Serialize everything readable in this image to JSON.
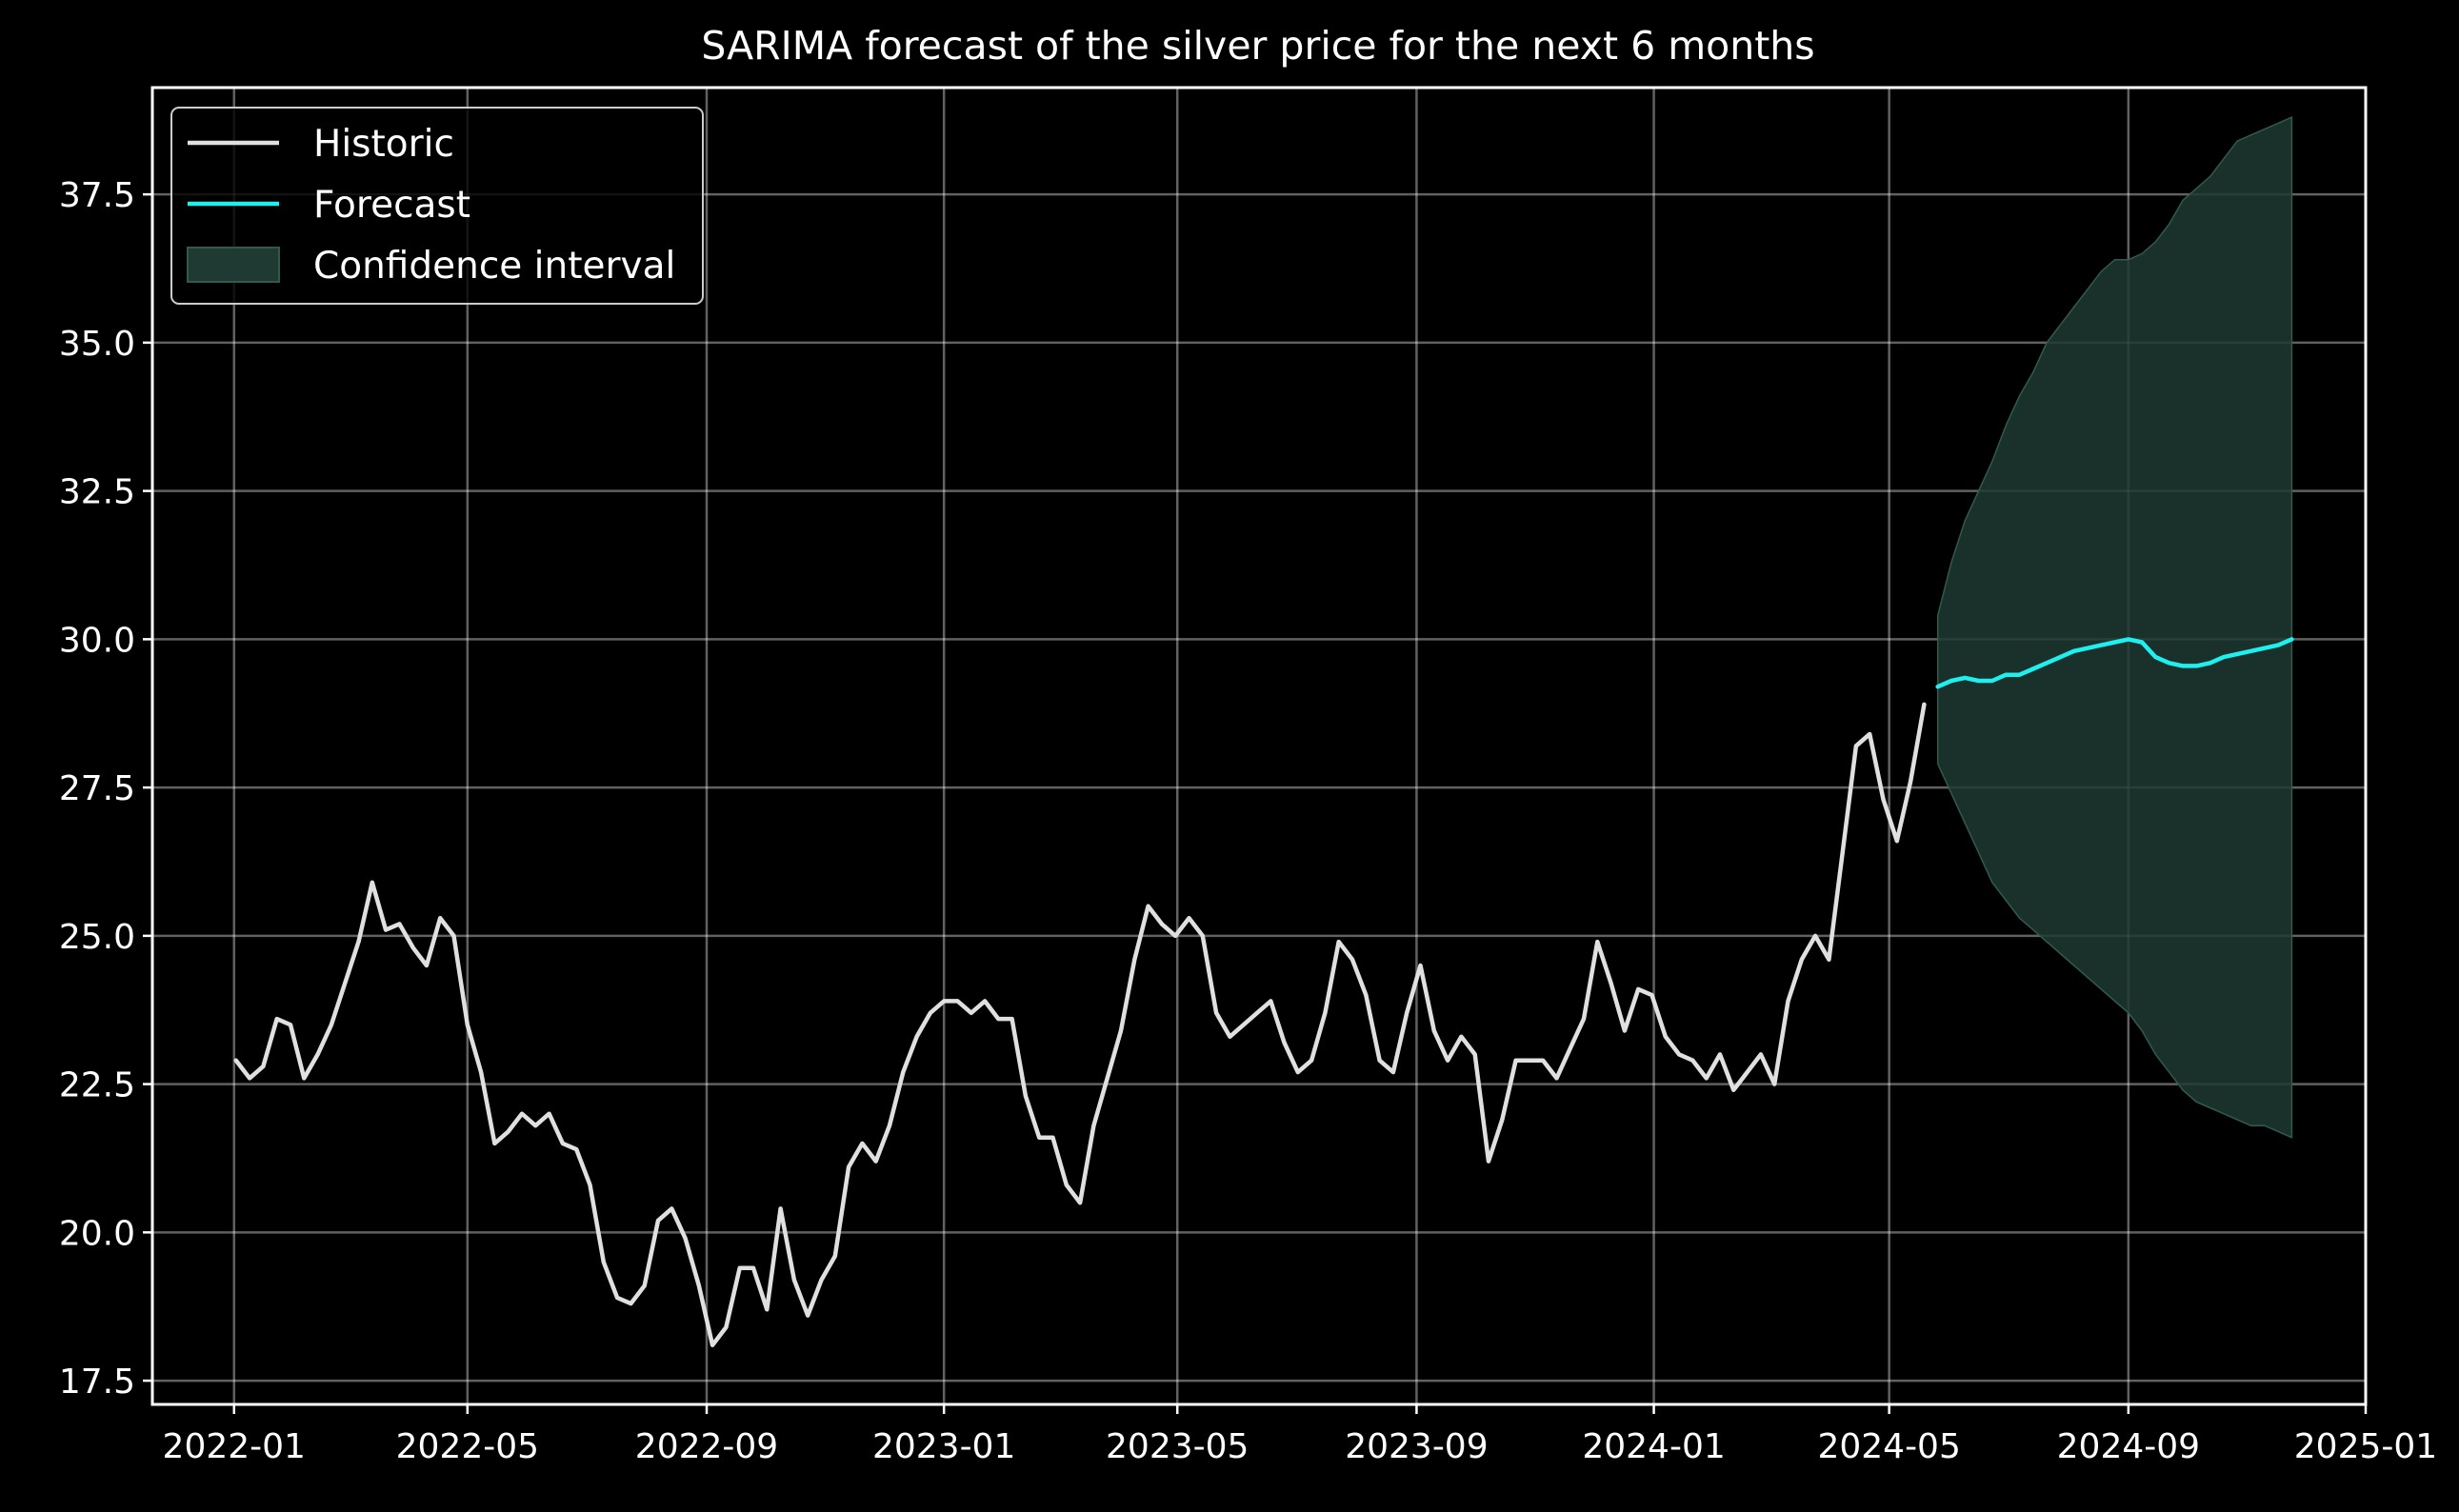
{
  "chart_data": {
    "type": "line",
    "title": "SARIMA forecast of the silver price for the next 6 months",
    "xlabel": "",
    "ylabel": "",
    "x_axis_type": "date",
    "xlim": [
      "2021-11-20",
      "2025-01-01"
    ],
    "ylim": [
      17.1,
      39.3
    ],
    "x_ticks": [
      "2022-01",
      "2022-05",
      "2022-09",
      "2023-01",
      "2023-05",
      "2023-09",
      "2024-01",
      "2024-05",
      "2024-09",
      "2025-01"
    ],
    "y_ticks": [
      "17.5",
      "20.0",
      "22.5",
      "25.0",
      "27.5",
      "30.0",
      "32.5",
      "35.0",
      "37.5"
    ],
    "grid": true,
    "background": "#000000",
    "legend": {
      "position": "top-left",
      "entries": [
        {
          "label": "Historic",
          "kind": "line",
          "color": "#e0e0e0"
        },
        {
          "label": "Forecast",
          "kind": "line",
          "color": "#1ef0f0"
        },
        {
          "label": "Confidence interval",
          "kind": "band",
          "color": "#1e3a32"
        }
      ]
    },
    "series": [
      {
        "name": "Historic",
        "color": "#e0e0e0",
        "x": [
          "2022-01-02",
          "2022-01-09",
          "2022-01-16",
          "2022-01-23",
          "2022-01-30",
          "2022-02-06",
          "2022-02-13",
          "2022-02-20",
          "2022-02-27",
          "2022-03-06",
          "2022-03-13",
          "2022-03-20",
          "2022-03-27",
          "2022-04-03",
          "2022-04-10",
          "2022-04-17",
          "2022-04-24",
          "2022-05-01",
          "2022-05-08",
          "2022-05-15",
          "2022-05-22",
          "2022-05-29",
          "2022-06-05",
          "2022-06-12",
          "2022-06-19",
          "2022-06-26",
          "2022-07-03",
          "2022-07-10",
          "2022-07-17",
          "2022-07-24",
          "2022-07-31",
          "2022-08-07",
          "2022-08-14",
          "2022-08-21",
          "2022-08-28",
          "2022-09-04",
          "2022-09-11",
          "2022-09-18",
          "2022-09-25",
          "2022-10-02",
          "2022-10-09",
          "2022-10-16",
          "2022-10-23",
          "2022-10-30",
          "2022-11-06",
          "2022-11-13",
          "2022-11-20",
          "2022-11-27",
          "2022-12-04",
          "2022-12-11",
          "2022-12-18",
          "2022-12-25",
          "2023-01-01",
          "2023-01-08",
          "2023-01-15",
          "2023-01-22",
          "2023-01-29",
          "2023-02-05",
          "2023-02-12",
          "2023-02-19",
          "2023-02-26",
          "2023-03-05",
          "2023-03-12",
          "2023-03-19",
          "2023-03-26",
          "2023-04-02",
          "2023-04-09",
          "2023-04-16",
          "2023-04-23",
          "2023-04-30",
          "2023-05-07",
          "2023-05-14",
          "2023-05-21",
          "2023-05-28",
          "2023-06-04",
          "2023-06-11",
          "2023-06-18",
          "2023-06-25",
          "2023-07-02",
          "2023-07-09",
          "2023-07-16",
          "2023-07-23",
          "2023-07-30",
          "2023-08-06",
          "2023-08-13",
          "2023-08-20",
          "2023-08-27",
          "2023-09-03",
          "2023-09-10",
          "2023-09-17",
          "2023-09-24",
          "2023-10-01",
          "2023-10-08",
          "2023-10-15",
          "2023-10-22",
          "2023-10-29",
          "2023-11-05",
          "2023-11-12",
          "2023-11-19",
          "2023-11-26",
          "2023-12-03",
          "2023-12-10",
          "2023-12-17",
          "2023-12-24",
          "2023-12-31",
          "2024-01-07",
          "2024-01-14",
          "2024-01-21",
          "2024-01-28",
          "2024-02-04",
          "2024-02-11",
          "2024-02-18",
          "2024-02-25",
          "2024-03-03",
          "2024-03-10",
          "2024-03-17",
          "2024-03-24",
          "2024-03-31",
          "2024-04-07",
          "2024-04-14",
          "2024-04-21",
          "2024-04-28",
          "2024-05-05",
          "2024-05-12",
          "2024-05-19"
        ],
        "values": [
          22.9,
          22.6,
          22.8,
          23.6,
          23.5,
          22.6,
          23.0,
          23.5,
          24.2,
          24.9,
          25.9,
          25.1,
          25.2,
          24.8,
          24.5,
          25.3,
          25.0,
          23.5,
          22.7,
          21.5,
          21.7,
          22.0,
          21.8,
          22.0,
          21.5,
          21.4,
          20.8,
          19.5,
          18.9,
          18.8,
          19.1,
          20.2,
          20.4,
          19.9,
          19.1,
          18.1,
          18.4,
          19.4,
          19.4,
          18.7,
          20.4,
          19.2,
          18.6,
          19.2,
          19.6,
          21.1,
          21.5,
          21.2,
          21.8,
          22.7,
          23.3,
          23.7,
          23.9,
          23.9,
          23.7,
          23.9,
          23.6,
          23.6,
          22.3,
          21.6,
          21.6,
          20.8,
          20.5,
          21.8,
          22.6,
          23.4,
          24.6,
          25.5,
          25.2,
          25.0,
          25.3,
          25.0,
          23.7,
          23.3,
          23.5,
          23.7,
          23.9,
          23.2,
          22.7,
          22.9,
          23.7,
          24.9,
          24.6,
          24.0,
          22.9,
          22.7,
          23.7,
          24.5,
          23.4,
          22.9,
          23.3,
          23.0,
          21.2,
          21.9,
          22.9,
          22.9,
          22.9,
          22.6,
          23.1,
          23.6,
          24.9,
          24.2,
          23.4,
          24.1,
          24.0,
          23.3,
          23.0,
          22.9,
          22.6,
          23.0,
          22.4,
          22.7,
          23.0,
          22.5,
          23.9,
          24.6,
          25.0,
          24.6,
          26.4,
          28.2,
          28.4,
          27.3,
          26.6,
          27.6,
          28.9
        ]
      },
      {
        "name": "Forecast",
        "color": "#1ef0f0",
        "x": [
          "2024-05-26",
          "2024-06-02",
          "2024-06-09",
          "2024-06-16",
          "2024-06-23",
          "2024-06-30",
          "2024-07-07",
          "2024-07-14",
          "2024-07-21",
          "2024-07-28",
          "2024-08-04",
          "2024-08-11",
          "2024-08-18",
          "2024-08-25",
          "2024-09-01",
          "2024-09-08",
          "2024-09-15",
          "2024-09-22",
          "2024-09-29",
          "2024-10-06",
          "2024-10-13",
          "2024-10-20",
          "2024-10-27",
          "2024-11-03",
          "2024-11-10",
          "2024-11-17",
          "2024-11-24"
        ],
        "values": [
          29.2,
          29.3,
          29.35,
          29.3,
          29.3,
          29.4,
          29.4,
          29.5,
          29.6,
          29.7,
          29.8,
          29.85,
          29.9,
          29.95,
          30.0,
          29.95,
          29.7,
          29.6,
          29.55,
          29.55,
          29.6,
          29.7,
          29.75,
          29.8,
          29.85,
          29.9,
          30.0
        ]
      }
    ],
    "confidence_interval": {
      "name": "Confidence interval",
      "color": "#1e3a32",
      "x": [
        "2024-05-26",
        "2024-06-02",
        "2024-06-09",
        "2024-06-16",
        "2024-06-23",
        "2024-06-30",
        "2024-07-07",
        "2024-07-14",
        "2024-07-21",
        "2024-07-28",
        "2024-08-04",
        "2024-08-11",
        "2024-08-18",
        "2024-08-25",
        "2024-09-01",
        "2024-09-08",
        "2024-09-15",
        "2024-09-22",
        "2024-09-29",
        "2024-10-06",
        "2024-10-13",
        "2024-10-20",
        "2024-10-27",
        "2024-11-03",
        "2024-11-10",
        "2024-11-17",
        "2024-11-24"
      ],
      "lower": [
        27.9,
        27.4,
        26.9,
        26.4,
        25.9,
        25.6,
        25.3,
        25.1,
        24.9,
        24.7,
        24.5,
        24.3,
        24.1,
        23.9,
        23.7,
        23.4,
        23.0,
        22.7,
        22.4,
        22.2,
        22.1,
        22.0,
        21.9,
        21.8,
        21.8,
        21.7,
        21.6
      ],
      "upper": [
        30.4,
        31.3,
        32.0,
        32.5,
        33.0,
        33.6,
        34.1,
        34.5,
        35.0,
        35.3,
        35.6,
        35.9,
        36.2,
        36.4,
        36.4,
        36.5,
        36.7,
        37.0,
        37.4,
        37.6,
        37.8,
        38.1,
        38.4,
        38.5,
        38.6,
        38.7,
        38.8
      ]
    }
  }
}
